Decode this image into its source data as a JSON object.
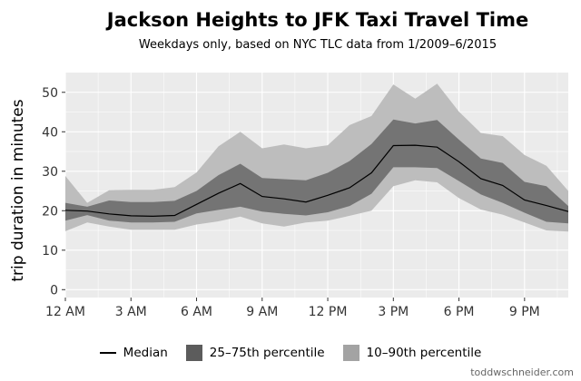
{
  "chart_data": {
    "type": "area",
    "title": "Jackson Heights to JFK Taxi Travel Time",
    "subtitle": "Weekdays only, based on NYC TLC data from 1/2009–6/2015",
    "xlabel": "",
    "ylabel": "trip duration in minutes",
    "xlim": [
      0,
      23
    ],
    "ylim": [
      -2,
      55
    ],
    "x_ticks": [
      {
        "value": 0,
        "label": "12 AM"
      },
      {
        "value": 3,
        "label": "3 AM"
      },
      {
        "value": 6,
        "label": "6 AM"
      },
      {
        "value": 9,
        "label": "9 AM"
      },
      {
        "value": 12,
        "label": "12 PM"
      },
      {
        "value": 15,
        "label": "3 PM"
      },
      {
        "value": 18,
        "label": "6 PM"
      },
      {
        "value": 21,
        "label": "9 PM"
      }
    ],
    "y_ticks": [
      0,
      10,
      20,
      30,
      40,
      50
    ],
    "grid": true,
    "legend_position": "bottom",
    "x": [
      0,
      1,
      2,
      3,
      4,
      5,
      6,
      7,
      8,
      9,
      10,
      11,
      12,
      13,
      14,
      15,
      16,
      17,
      18,
      19,
      20,
      21,
      22,
      23
    ],
    "series": [
      {
        "name": "10–90th percentile",
        "kind": "band",
        "color": "#bdbdbd",
        "low": [
          14.8,
          17.0,
          16.0,
          15.2,
          15.2,
          15.2,
          16.5,
          17.3,
          18.5,
          16.8,
          16.0,
          17.0,
          17.5,
          18.7,
          20.0,
          26.2,
          27.7,
          27.2,
          23.2,
          20.3,
          19.0,
          17.0,
          15.0,
          14.7
        ],
        "high": [
          28.8,
          22.0,
          25.2,
          25.3,
          25.3,
          26.0,
          29.7,
          36.3,
          40.0,
          35.8,
          36.8,
          35.8,
          36.6,
          41.7,
          44.0,
          52.0,
          48.4,
          52.2,
          45.1,
          39.7,
          38.9,
          34.1,
          31.4,
          25.0
        ]
      },
      {
        "name": "25–75th percentile",
        "kind": "band",
        "color": "#5c5c5c",
        "low": [
          17.5,
          18.9,
          17.5,
          17.0,
          17.0,
          17.2,
          19.3,
          20.2,
          21.0,
          19.8,
          19.2,
          18.8,
          19.6,
          21.2,
          24.3,
          31.0,
          31.0,
          30.8,
          27.5,
          24.1,
          22.0,
          19.5,
          17.2,
          16.8
        ],
        "high": [
          22.0,
          21.0,
          22.6,
          22.2,
          22.2,
          22.5,
          25.0,
          29.0,
          31.9,
          28.3,
          28.0,
          27.7,
          29.6,
          32.6,
          36.9,
          43.1,
          42.1,
          43.0,
          38.0,
          33.2,
          32.1,
          27.3,
          26.2,
          21.2
        ]
      },
      {
        "name": "Median",
        "kind": "line",
        "color": "#000000",
        "values": [
          20.1,
          19.9,
          19.2,
          18.7,
          18.6,
          18.8,
          21.6,
          24.4,
          26.9,
          23.6,
          23.0,
          22.2,
          23.9,
          25.8,
          29.6,
          36.5,
          36.6,
          36.1,
          32.4,
          28.1,
          26.4,
          22.7,
          21.3,
          19.8
        ]
      }
    ]
  },
  "legend": {
    "median": "Median",
    "iqr": "25–75th percentile",
    "p10_90": "10–90th percentile"
  },
  "colors": {
    "panel_bg": "#ebebeb",
    "grid": "#ffffff",
    "band_outer": "#bdbdbd",
    "band_inner": "#5c5c5c",
    "line": "#000000"
  },
  "credit": "toddwschneider.com"
}
